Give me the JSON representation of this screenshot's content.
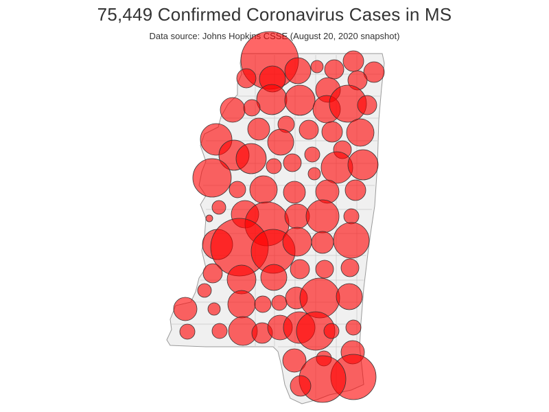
{
  "title": "75,449 Confirmed Coronavirus Cases in MS",
  "subtitle": "Data source: Johns Hopkins CSSE (August 20, 2020 snapshot)",
  "colors": {
    "bubble_fill": "#ff0000",
    "bubble_stroke": "#333333",
    "land": "#f0f0f0",
    "county_border": "#c8c8c8"
  },
  "chart_data": {
    "type": "bubble-map",
    "region": "Mississippi counties",
    "total_cases": 75449,
    "legend": "none"
  }
}
